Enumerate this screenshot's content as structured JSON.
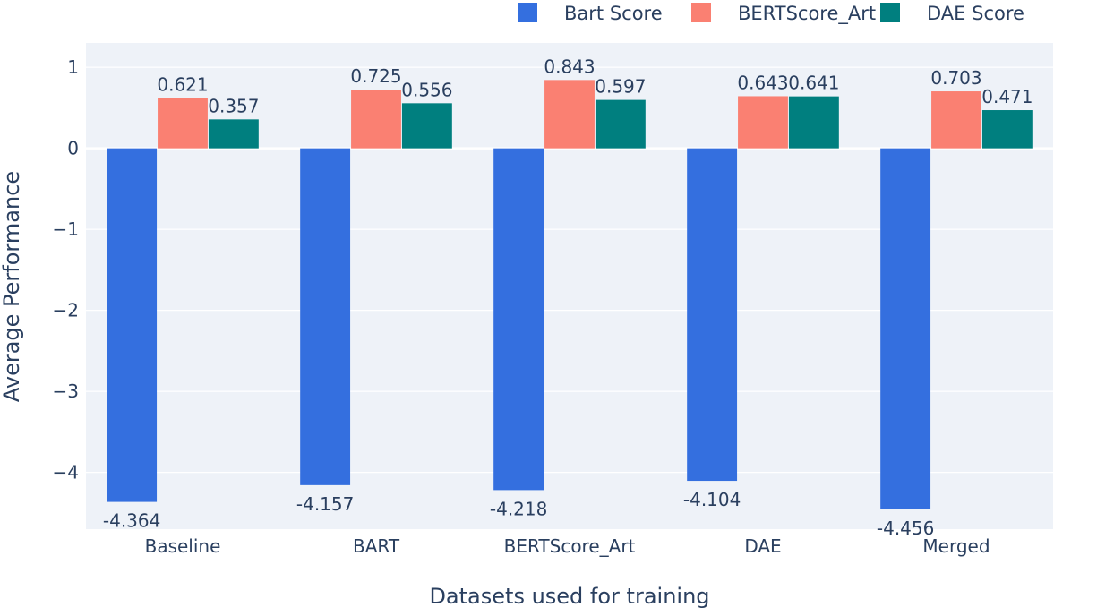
{
  "chart_data": {
    "type": "bar",
    "categories": [
      "Baseline",
      "BART",
      "BERTScore_Art",
      "DAE",
      "Merged"
    ],
    "series": [
      {
        "name": "Bart Score",
        "color": "#346fdf",
        "values": [
          -4.364,
          -4.157,
          -4.218,
          -4.104,
          -4.456
        ],
        "labels": [
          "-4.364",
          "-4.157",
          "-4.218",
          "-4.104",
          "-4.456"
        ]
      },
      {
        "name": "BERTScore_Art",
        "color": "#fa8072",
        "values": [
          0.621,
          0.725,
          0.843,
          0.643,
          0.703
        ],
        "labels": [
          "0.621",
          "0.725",
          "0.843",
          "0.643",
          "0.703"
        ]
      },
      {
        "name": "DAE Score",
        "color": "#007f7f",
        "values": [
          0.357,
          0.556,
          0.597,
          0.641,
          0.471
        ],
        "labels": [
          "0.357",
          "0.556",
          "0.597",
          "0.641",
          "0.471"
        ]
      }
    ],
    "xlabel": "Datasets used for training",
    "ylabel": "Average Performance",
    "ylim": [
      -4.7,
      1.3
    ],
    "yticks": [
      1,
      0,
      -1,
      -2,
      -3,
      -4
    ],
    "ytick_labels": [
      "1",
      "0",
      "−1",
      "−2",
      "−3",
      "−4"
    ],
    "grid": true,
    "legend_position": "top-right",
    "plot_background": "#eef2f8"
  }
}
